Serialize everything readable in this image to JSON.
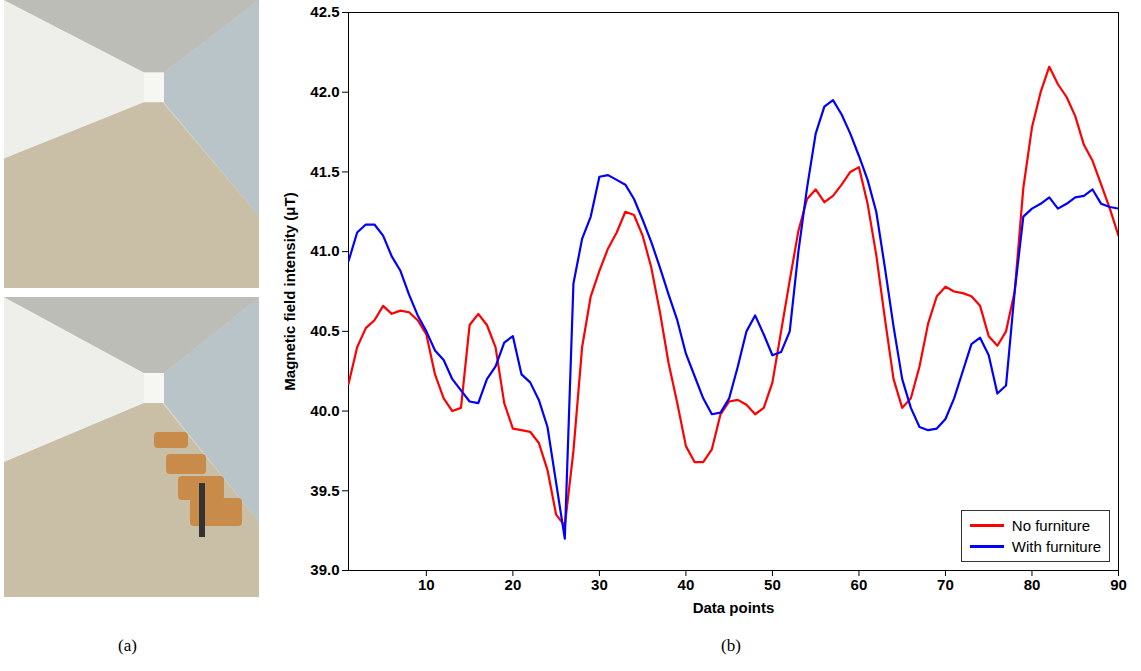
{
  "panel_labels": [
    "(a)",
    "(b)"
  ],
  "chart_data": {
    "type": "line",
    "x_label": "Data points",
    "y_label": "Magnetic field intensity (μT)",
    "x": [
      1,
      2,
      3,
      4,
      5,
      6,
      7,
      8,
      9,
      10,
      11,
      12,
      13,
      14,
      15,
      16,
      17,
      18,
      19,
      20,
      21,
      22,
      23,
      24,
      25,
      26,
      27,
      28,
      29,
      30,
      31,
      32,
      33,
      34,
      35,
      36,
      37,
      38,
      39,
      40,
      41,
      42,
      43,
      44,
      45,
      46,
      47,
      48,
      49,
      50,
      51,
      52,
      53,
      54,
      55,
      56,
      57,
      58,
      59,
      60,
      61,
      62,
      63,
      64,
      65,
      66,
      67,
      68,
      69,
      70,
      71,
      72,
      73,
      74,
      75,
      76,
      77,
      78,
      79,
      80,
      81,
      82,
      83,
      84,
      85,
      86,
      87,
      88,
      89,
      90
    ],
    "series": [
      {
        "name": "No furniture",
        "color": "#ff0000",
        "values": [
          40.17,
          40.4,
          40.52,
          40.57,
          40.66,
          40.61,
          40.63,
          40.62,
          40.57,
          40.48,
          40.23,
          40.08,
          40.0,
          40.02,
          40.54,
          40.61,
          40.54,
          40.4,
          40.05,
          39.89,
          39.88,
          39.87,
          39.8,
          39.63,
          39.35,
          39.28,
          39.75,
          40.4,
          40.72,
          40.88,
          41.02,
          41.12,
          41.25,
          41.23,
          41.1,
          40.9,
          40.62,
          40.3,
          40.05,
          39.78,
          39.68,
          39.68,
          39.76,
          39.98,
          40.06,
          40.07,
          40.04,
          39.98,
          40.02,
          40.18,
          40.5,
          40.82,
          41.13,
          41.33,
          41.39,
          41.31,
          41.35,
          41.42,
          41.5,
          41.53,
          41.3,
          40.98,
          40.58,
          40.2,
          40.02,
          40.08,
          40.28,
          40.55,
          40.72,
          40.78,
          40.75,
          40.74,
          40.72,
          40.66,
          40.47,
          40.41,
          40.5,
          40.75,
          41.4,
          41.78,
          42.0,
          42.16,
          42.05,
          41.97,
          41.85,
          41.67,
          41.57,
          41.42,
          41.27,
          41.1
        ]
      },
      {
        "name": "With furniture",
        "color": "#0000ff",
        "values": [
          40.94,
          41.12,
          41.17,
          41.17,
          41.1,
          40.97,
          40.88,
          40.73,
          40.6,
          40.5,
          40.38,
          40.32,
          40.2,
          40.13,
          40.06,
          40.05,
          40.2,
          40.28,
          40.43,
          40.47,
          40.23,
          40.18,
          40.07,
          39.9,
          39.55,
          39.2,
          40.8,
          41.08,
          41.22,
          41.47,
          41.48,
          41.45,
          41.42,
          41.33,
          41.2,
          41.06,
          40.9,
          40.73,
          40.57,
          40.36,
          40.22,
          40.08,
          39.98,
          39.99,
          40.08,
          40.28,
          40.5,
          40.6,
          40.48,
          40.35,
          40.37,
          40.5,
          41.0,
          41.4,
          41.74,
          41.91,
          41.95,
          41.86,
          41.74,
          41.6,
          41.45,
          41.25,
          40.9,
          40.53,
          40.2,
          40.02,
          39.9,
          39.88,
          39.89,
          39.95,
          40.08,
          40.25,
          40.42,
          40.46,
          40.35,
          40.11,
          40.16,
          40.75,
          41.22,
          41.27,
          41.3,
          41.34,
          41.27,
          41.3,
          41.34,
          41.35,
          41.39,
          41.3,
          41.28,
          41.27
        ]
      }
    ],
    "xlim": [
      1,
      90
    ],
    "xticks": [
      10,
      20,
      30,
      40,
      50,
      60,
      70,
      80,
      90
    ],
    "ylim": [
      39,
      42.5
    ],
    "yticks": [
      39,
      39.5,
      40,
      40.5,
      41,
      41.5,
      42,
      42.5
    ],
    "grid": false,
    "legend": "lower right"
  }
}
